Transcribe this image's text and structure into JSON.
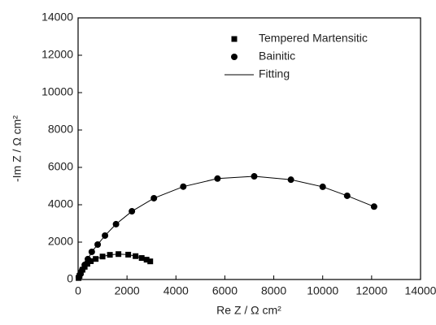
{
  "chart_data": {
    "type": "scatter",
    "xlabel": "Re Z / Ω cm²",
    "ylabel": "-Im Z / Ω cm²",
    "xlim": [
      0,
      14000
    ],
    "xticks": [
      0,
      2000,
      4000,
      6000,
      8000,
      10000,
      12000,
      14000
    ],
    "ylim": [
      0,
      14000
    ],
    "yticks": [
      0,
      2000,
      4000,
      6000,
      8000,
      10000,
      12000,
      14000
    ],
    "legend": "upper right",
    "fit_label": "Fitting",
    "fit_color": "#000000",
    "series": [
      {
        "name": "Tempered Martensitic",
        "marker": "square",
        "color": "#000000",
        "x": [
          20,
          60,
          110,
          180,
          270,
          380,
          520,
          720,
          1000,
          1300,
          1650,
          2050,
          2350,
          2600,
          2800,
          2950
        ],
        "values": [
          80,
          200,
          360,
          520,
          680,
          840,
          980,
          1100,
          1230,
          1320,
          1360,
          1330,
          1250,
          1150,
          1060,
          970
        ]
      },
      {
        "name": "Bainitic",
        "marker": "circle",
        "color": "#000000",
        "x": [
          30,
          100,
          170,
          270,
          400,
          560,
          800,
          1100,
          1550,
          2200,
          3100,
          4300,
          5700,
          7200,
          8700,
          10000,
          11000,
          12100
        ],
        "values": [
          130,
          300,
          520,
          780,
          1090,
          1480,
          1870,
          2350,
          2960,
          3650,
          4350,
          4970,
          5400,
          5520,
          5340,
          4960,
          4480,
          3900
        ]
      }
    ]
  }
}
